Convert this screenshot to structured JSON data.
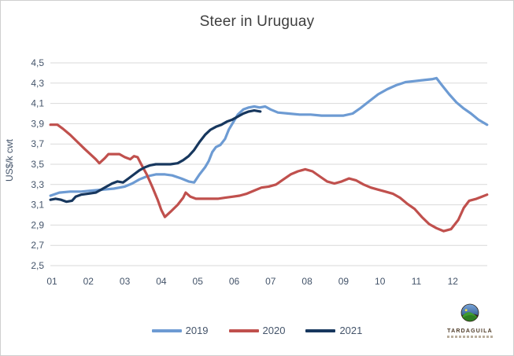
{
  "chart_data": {
    "type": "line",
    "title": "Steer in Uruguay",
    "xlabel": "",
    "ylabel": "US$/k cwt",
    "ylim": [
      2.5,
      4.5
    ],
    "ytick_step": 0.2,
    "ytick_labels_top_to_bottom": [
      "4,5",
      "4,3",
      "4,1",
      "3,9",
      "3,7",
      "3,5",
      "3,3",
      "3,1",
      "2,9",
      "2,7",
      "2,5"
    ],
    "xtick_labels": [
      "01",
      "02",
      "03",
      "04",
      "05",
      "06",
      "07",
      "08",
      "09",
      "10",
      "11",
      "12"
    ],
    "grid": true,
    "gridline_color": "#d9d9d9",
    "axis_label_color": "#44546a",
    "legend_position": "bottom",
    "x_unit": "month (weekly points, fractional month position)",
    "series": [
      {
        "name": "2019",
        "color": "#6d9bd3",
        "points": [
          [
            0.96,
            3.19
          ],
          [
            1.2,
            3.22
          ],
          [
            1.5,
            3.23
          ],
          [
            1.8,
            3.23
          ],
          [
            2.1,
            3.24
          ],
          [
            2.4,
            3.25
          ],
          [
            2.7,
            3.26
          ],
          [
            3.0,
            3.28
          ],
          [
            3.2,
            3.31
          ],
          [
            3.4,
            3.35
          ],
          [
            3.6,
            3.38
          ],
          [
            3.85,
            3.4
          ],
          [
            4.1,
            3.4
          ],
          [
            4.3,
            3.39
          ],
          [
            4.55,
            3.36
          ],
          [
            4.75,
            3.33
          ],
          [
            4.9,
            3.32
          ],
          [
            5.05,
            3.4
          ],
          [
            5.2,
            3.47
          ],
          [
            5.3,
            3.53
          ],
          [
            5.4,
            3.62
          ],
          [
            5.5,
            3.67
          ],
          [
            5.62,
            3.69
          ],
          [
            5.75,
            3.75
          ],
          [
            5.85,
            3.84
          ],
          [
            6.0,
            3.93
          ],
          [
            6.1,
            3.99
          ],
          [
            6.25,
            4.04
          ],
          [
            6.4,
            4.06
          ],
          [
            6.55,
            4.07
          ],
          [
            6.7,
            4.06
          ],
          [
            6.85,
            4.07
          ],
          [
            7.0,
            4.04
          ],
          [
            7.2,
            4.01
          ],
          [
            7.5,
            4.0
          ],
          [
            7.8,
            3.99
          ],
          [
            8.1,
            3.99
          ],
          [
            8.4,
            3.98
          ],
          [
            8.7,
            3.98
          ],
          [
            9.0,
            3.98
          ],
          [
            9.25,
            4.0
          ],
          [
            9.45,
            4.05
          ],
          [
            9.7,
            4.12
          ],
          [
            9.95,
            4.19
          ],
          [
            10.2,
            4.24
          ],
          [
            10.45,
            4.28
          ],
          [
            10.7,
            4.31
          ],
          [
            10.95,
            4.32
          ],
          [
            11.2,
            4.33
          ],
          [
            11.45,
            4.34
          ],
          [
            11.55,
            4.35
          ],
          [
            11.7,
            4.28
          ],
          [
            11.9,
            4.19
          ],
          [
            12.1,
            4.11
          ],
          [
            12.3,
            4.05
          ],
          [
            12.5,
            4.0
          ],
          [
            12.7,
            3.94
          ],
          [
            12.94,
            3.89
          ]
        ]
      },
      {
        "name": "2020",
        "color": "#c0504d",
        "points": [
          [
            0.96,
            3.89
          ],
          [
            1.15,
            3.89
          ],
          [
            1.3,
            3.85
          ],
          [
            1.5,
            3.79
          ],
          [
            1.7,
            3.72
          ],
          [
            1.9,
            3.65
          ],
          [
            2.05,
            3.6
          ],
          [
            2.2,
            3.55
          ],
          [
            2.3,
            3.51
          ],
          [
            2.45,
            3.56
          ],
          [
            2.55,
            3.6
          ],
          [
            2.7,
            3.6
          ],
          [
            2.85,
            3.6
          ],
          [
            3.0,
            3.57
          ],
          [
            3.15,
            3.55
          ],
          [
            3.25,
            3.58
          ],
          [
            3.35,
            3.57
          ],
          [
            3.45,
            3.5
          ],
          [
            3.6,
            3.4
          ],
          [
            3.75,
            3.28
          ],
          [
            3.9,
            3.15
          ],
          [
            4.0,
            3.05
          ],
          [
            4.1,
            2.98
          ],
          [
            4.25,
            3.03
          ],
          [
            4.45,
            3.1
          ],
          [
            4.6,
            3.17
          ],
          [
            4.67,
            3.22
          ],
          [
            4.8,
            3.18
          ],
          [
            4.95,
            3.16
          ],
          [
            5.15,
            3.16
          ],
          [
            5.35,
            3.16
          ],
          [
            5.55,
            3.16
          ],
          [
            5.75,
            3.17
          ],
          [
            5.95,
            3.18
          ],
          [
            6.15,
            3.19
          ],
          [
            6.35,
            3.21
          ],
          [
            6.55,
            3.24
          ],
          [
            6.75,
            3.27
          ],
          [
            6.95,
            3.28
          ],
          [
            7.15,
            3.3
          ],
          [
            7.35,
            3.35
          ],
          [
            7.55,
            3.4
          ],
          [
            7.75,
            3.43
          ],
          [
            7.95,
            3.45
          ],
          [
            8.15,
            3.43
          ],
          [
            8.35,
            3.38
          ],
          [
            8.55,
            3.33
          ],
          [
            8.75,
            3.31
          ],
          [
            8.95,
            3.33
          ],
          [
            9.15,
            3.36
          ],
          [
            9.35,
            3.34
          ],
          [
            9.55,
            3.3
          ],
          [
            9.75,
            3.27
          ],
          [
            9.95,
            3.25
          ],
          [
            10.15,
            3.23
          ],
          [
            10.35,
            3.21
          ],
          [
            10.55,
            3.17
          ],
          [
            10.75,
            3.11
          ],
          [
            10.95,
            3.06
          ],
          [
            11.15,
            2.98
          ],
          [
            11.35,
            2.91
          ],
          [
            11.55,
            2.87
          ],
          [
            11.75,
            2.84
          ],
          [
            11.95,
            2.86
          ],
          [
            12.15,
            2.95
          ],
          [
            12.3,
            3.07
          ],
          [
            12.45,
            3.14
          ],
          [
            12.65,
            3.16
          ],
          [
            12.8,
            3.18
          ],
          [
            12.94,
            3.2
          ]
        ]
      },
      {
        "name": "2021",
        "color": "#17375e",
        "points": [
          [
            0.96,
            3.15
          ],
          [
            1.1,
            3.16
          ],
          [
            1.25,
            3.15
          ],
          [
            1.4,
            3.13
          ],
          [
            1.55,
            3.14
          ],
          [
            1.65,
            3.18
          ],
          [
            1.8,
            3.2
          ],
          [
            2.0,
            3.21
          ],
          [
            2.2,
            3.22
          ],
          [
            2.35,
            3.25
          ],
          [
            2.5,
            3.28
          ],
          [
            2.65,
            3.31
          ],
          [
            2.8,
            3.33
          ],
          [
            2.95,
            3.32
          ],
          [
            3.1,
            3.36
          ],
          [
            3.25,
            3.4
          ],
          [
            3.4,
            3.44
          ],
          [
            3.55,
            3.47
          ],
          [
            3.7,
            3.49
          ],
          [
            3.85,
            3.5
          ],
          [
            4.05,
            3.5
          ],
          [
            4.25,
            3.5
          ],
          [
            4.45,
            3.51
          ],
          [
            4.6,
            3.54
          ],
          [
            4.75,
            3.58
          ],
          [
            4.9,
            3.64
          ],
          [
            5.05,
            3.72
          ],
          [
            5.2,
            3.79
          ],
          [
            5.35,
            3.84
          ],
          [
            5.5,
            3.87
          ],
          [
            5.65,
            3.89
          ],
          [
            5.8,
            3.92
          ],
          [
            5.95,
            3.94
          ],
          [
            6.1,
            3.97
          ],
          [
            6.25,
            4.0
          ],
          [
            6.4,
            4.02
          ],
          [
            6.55,
            4.03
          ],
          [
            6.72,
            4.02
          ]
        ]
      }
    ]
  },
  "logo": {
    "text": "TARDAGUILA"
  }
}
